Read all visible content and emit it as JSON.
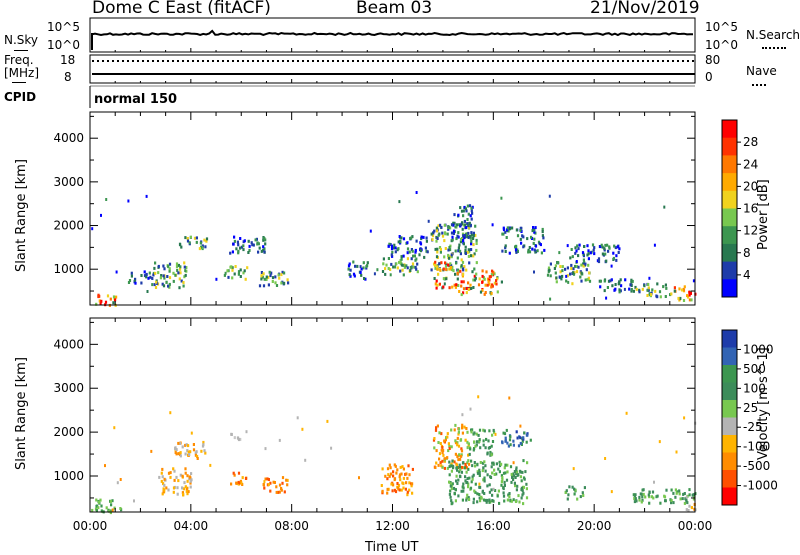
{
  "header": {
    "station": "Dome C East (fitACF)",
    "beam": "Beam 03",
    "date": "21/Nov/2019"
  },
  "top_panels": {
    "nsky_label": "N.Sky",
    "nsearch_label": "N.Search",
    "nsky_ticks": [
      "10^5",
      "10^0"
    ],
    "nsky_right_ticks": [
      "10^5",
      "10^0"
    ],
    "freq_label_1": "Freq.",
    "freq_label_2": "[MHz]",
    "freq_ticks": [
      "18",
      "8"
    ],
    "nave_label": "Nave",
    "nave_ticks": [
      "80",
      "0"
    ],
    "cpid_label": "CPID",
    "cpid_value": "normal 150"
  },
  "chart_data": [
    {
      "type": "heatmap",
      "name": "power",
      "ylabel": "Slant Range [km]",
      "colorbar_label": "Power [dB]",
      "xlim": [
        "00:00",
        "24:00"
      ],
      "ylim": [
        180,
        4600
      ],
      "yticks": [
        "1000",
        "2000",
        "3000",
        "4000"
      ],
      "colorbar_ticks": [
        "4",
        "8",
        "12",
        "16",
        "20",
        "24",
        "28"
      ],
      "colorbar_colors": [
        "#0000ff",
        "#1e3caa",
        "#287850",
        "#3c9650",
        "#78c850",
        "#f0d21e",
        "#ffaa00",
        "#ff7800",
        "#ff3200",
        "#ff0000"
      ],
      "clusters": [
        {
          "t0": 0.0,
          "t1": 1.0,
          "r0": 200,
          "r1": 450,
          "scale": "high"
        },
        {
          "t0": 1.5,
          "t1": 2.5,
          "r0": 700,
          "r1": 1000,
          "scale": "low"
        },
        {
          "t0": 2.5,
          "t1": 3.8,
          "r0": 600,
          "r1": 1200,
          "scale": "mid"
        },
        {
          "t0": 3.5,
          "t1": 4.6,
          "r0": 1500,
          "r1": 1800,
          "scale": "mid"
        },
        {
          "t0": 5.3,
          "t1": 6.2,
          "r0": 800,
          "r1": 1100,
          "scale": "mid"
        },
        {
          "t0": 5.5,
          "t1": 7.0,
          "r0": 1400,
          "r1": 1800,
          "scale": "low"
        },
        {
          "t0": 6.7,
          "t1": 8.0,
          "r0": 650,
          "r1": 1000,
          "scale": "mid"
        },
        {
          "t0": 10.2,
          "t1": 11.0,
          "r0": 800,
          "r1": 1200,
          "scale": "low"
        },
        {
          "t0": 11.5,
          "t1": 13.0,
          "r0": 900,
          "r1": 1300,
          "scale": "mid"
        },
        {
          "t0": 11.8,
          "t1": 13.4,
          "r0": 1300,
          "r1": 1800,
          "scale": "low"
        },
        {
          "t0": 13.5,
          "t1": 15.3,
          "r0": 1000,
          "r1": 2100,
          "scale": "mid"
        },
        {
          "t0": 13.6,
          "t1": 14.6,
          "r0": 600,
          "r1": 1200,
          "scale": "high"
        },
        {
          "t0": 14.3,
          "t1": 15.2,
          "r0": 1600,
          "r1": 2500,
          "scale": "low"
        },
        {
          "t0": 14.6,
          "t1": 16.3,
          "r0": 450,
          "r1": 1000,
          "scale": "high"
        },
        {
          "t0": 16.3,
          "t1": 18.0,
          "r0": 1400,
          "r1": 2000,
          "scale": "low"
        },
        {
          "t0": 18.0,
          "t1": 19.8,
          "r0": 700,
          "r1": 1200,
          "scale": "mid"
        },
        {
          "t0": 19.0,
          "t1": 21.0,
          "r0": 1200,
          "r1": 1600,
          "scale": "low"
        },
        {
          "t0": 20.0,
          "t1": 21.5,
          "r0": 500,
          "r1": 800,
          "scale": "low"
        },
        {
          "t0": 21.5,
          "t1": 23.0,
          "r0": 400,
          "r1": 700,
          "scale": "mid"
        },
        {
          "t0": 23.0,
          "t1": 24.0,
          "r0": 300,
          "r1": 650,
          "scale": "high"
        }
      ]
    },
    {
      "type": "heatmap",
      "name": "velocity",
      "xlabel": "Time UT",
      "ylabel": "Slant Range [km]",
      "colorbar_label": "Velocity [m s^-1]",
      "xlim": [
        "00:00",
        "24:00"
      ],
      "ylim": [
        180,
        4600
      ],
      "xticks": [
        "00:00",
        "04:00",
        "08:00",
        "12:00",
        "16:00",
        "20:00",
        "00:00"
      ],
      "yticks": [
        "1000",
        "2000",
        "3000",
        "4000"
      ],
      "colorbar_ticks": [
        "1000",
        "500",
        "100",
        "25",
        "-25",
        "-100",
        "-500",
        "-1000"
      ],
      "colorbar_colors": [
        "#1e3caa",
        "#3264b4",
        "#3c9650",
        "#3c8c5a",
        "#78c850",
        "#b4b4b4",
        "#ffb400",
        "#ff8c00",
        "#ff5000",
        "#ff0000"
      ],
      "clusters": [
        {
          "t0": 0.0,
          "t1": 1.3,
          "r0": 200,
          "r1": 500,
          "scale": "green-light"
        },
        {
          "t0": 3.3,
          "t1": 4.6,
          "r0": 1400,
          "r1": 1800,
          "scale": "orange-yellow"
        },
        {
          "t0": 2.7,
          "t1": 4.0,
          "r0": 600,
          "r1": 1200,
          "scale": "orange-yellow"
        },
        {
          "t0": 5.5,
          "t1": 6.2,
          "r0": 800,
          "r1": 1100,
          "scale": "orange"
        },
        {
          "t0": 5.5,
          "t1": 6.0,
          "r0": 1800,
          "r1": 2000,
          "scale": "grey"
        },
        {
          "t0": 6.8,
          "t1": 7.8,
          "r0": 650,
          "r1": 1000,
          "scale": "orange"
        },
        {
          "t0": 11.5,
          "t1": 12.8,
          "r0": 600,
          "r1": 1300,
          "scale": "orange"
        },
        {
          "t0": 13.6,
          "t1": 15.0,
          "r0": 1200,
          "r1": 2200,
          "scale": "orange-red"
        },
        {
          "t0": 14.2,
          "t1": 17.3,
          "r0": 400,
          "r1": 1400,
          "scale": "green"
        },
        {
          "t0": 15.0,
          "t1": 16.0,
          "r0": 1500,
          "r1": 2100,
          "scale": "green"
        },
        {
          "t0": 16.3,
          "t1": 17.5,
          "r0": 1700,
          "r1": 2100,
          "scale": "blue"
        },
        {
          "t0": 18.8,
          "t1": 19.6,
          "r0": 500,
          "r1": 800,
          "scale": "green"
        },
        {
          "t0": 21.5,
          "t1": 24.0,
          "r0": 400,
          "r1": 750,
          "scale": "green"
        },
        {
          "t0": 23.6,
          "t1": 24.0,
          "r0": 150,
          "r1": 400,
          "scale": "orange-yellow"
        }
      ]
    }
  ]
}
